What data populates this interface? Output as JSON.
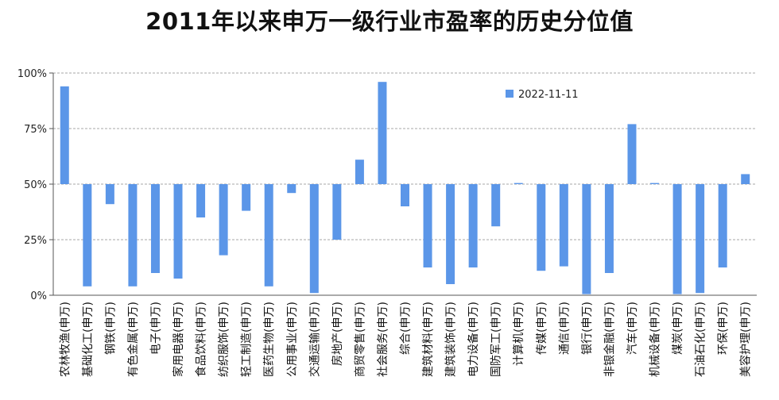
{
  "chart_data": {
    "type": "bar",
    "title": "2011年以来申万一级行业市盈率的历史分位值",
    "xlabel": "",
    "ylabel": "",
    "ylim": [
      0,
      1
    ],
    "baseline": 0.5,
    "yticks": [
      {
        "value": 0,
        "label": "0%"
      },
      {
        "value": 0.25,
        "label": "25%"
      },
      {
        "value": 0.5,
        "label": "50%"
      },
      {
        "value": 0.75,
        "label": "75%"
      },
      {
        "value": 1,
        "label": "100%"
      }
    ],
    "grid": true,
    "legend_position": "top-right",
    "categories": [
      "农林牧渔(申万)",
      "基础化工(申万)",
      "钢铁(申万)",
      "有色金属(申万)",
      "电子(申万)",
      "家用电器(申万)",
      "食品饮料(申万)",
      "纺织服饰(申万)",
      "轻工制造(申万)",
      "医药生物(申万)",
      "公用事业(申万)",
      "交通运输(申万)",
      "房地产(申万)",
      "商贸零售(申万)",
      "社会服务(申万)",
      "综合(申万)",
      "建筑材料(申万)",
      "建筑装饰(申万)",
      "电力设备(申万)",
      "国防军工(申万)",
      "计算机(申万)",
      "传媒(申万)",
      "通信(申万)",
      "银行(申万)",
      "非银金融(申万)",
      "汽车(申万)",
      "机械设备(申万)",
      "煤炭(申万)",
      "石油石化(申万)",
      "环保(申万)",
      "美容护理(申万)"
    ],
    "series": [
      {
        "name": "2022-11-11",
        "color": "#5b96e8",
        "values": [
          0.94,
          0.04,
          0.41,
          0.04,
          0.1,
          0.075,
          0.35,
          0.18,
          0.38,
          0.04,
          0.46,
          0.01,
          0.25,
          0.61,
          0.96,
          0.4,
          0.125,
          0.05,
          0.125,
          0.31,
          0.505,
          0.11,
          0.13,
          0.005,
          0.1,
          0.77,
          0.505,
          0.005,
          0.01,
          0.125,
          0.545
        ]
      }
    ]
  }
}
